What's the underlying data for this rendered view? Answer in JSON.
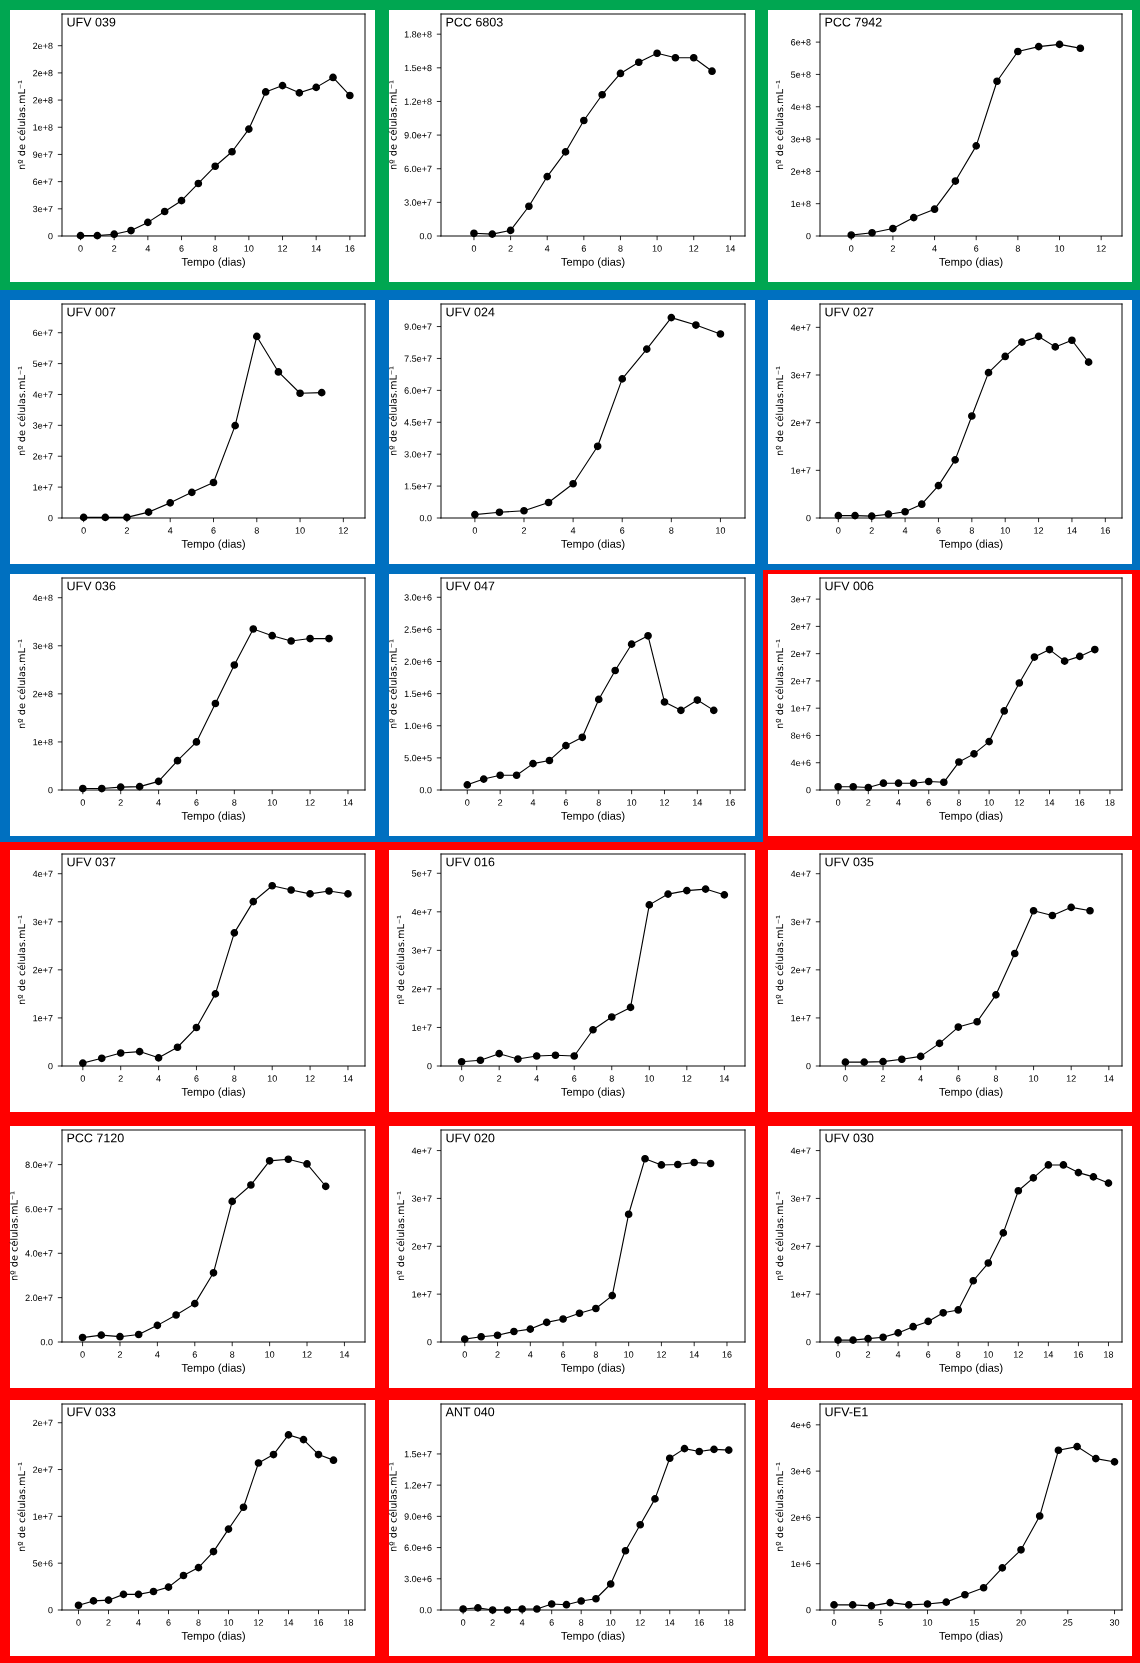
{
  "chart_data": [
    {
      "type": "line",
      "title": "UFV 039",
      "xlabel": "Tempo (dias)",
      "ylabel": "nº de células.mL⁻¹",
      "marker": "circle",
      "x": [
        0,
        1,
        2,
        3,
        4,
        5,
        6,
        7,
        8,
        9,
        10,
        11,
        12,
        13,
        14,
        15,
        16
      ],
      "series": [
        {
          "color": "#000000",
          "values": [
            400000.0,
            400000.0,
            2000000.0,
            6000000.0,
            15000000.0,
            27000000.0,
            39000000.0,
            58000000.0,
            77000000.0,
            93000000.0,
            118000000.0,
            159000000.0,
            166000000.0,
            158000000.0,
            164000000.0,
            175000000.0,
            155000000.0
          ]
        }
      ],
      "xlim": [
        -1.1,
        16.9
      ],
      "xticks": [
        0,
        2,
        4,
        6,
        8,
        10,
        12,
        14,
        16
      ],
      "ylim": [
        0,
        245000000.0
      ],
      "yticks": [
        0,
        {
          "value": 30000000.0,
          "label": "3e+7"
        },
        {
          "value": 60000000.0,
          "label": "6e+7"
        },
        {
          "value": 90000000.0,
          "label": "9e+7"
        },
        {
          "value": 120000000.0,
          "label": "1e+8"
        },
        {
          "value": 150000000.0,
          "label": "2e+8"
        },
        {
          "value": 180000000.0,
          "label": "2e+8"
        },
        {
          "value": 210000000.0,
          "label": "2e+8"
        }
      ]
    },
    {
      "type": "line",
      "title": "PCC 6803",
      "xlabel": "Tempo (dias)",
      "ylabel": "nº de células.mL⁻¹",
      "marker": "circle",
      "x": [
        0,
        1,
        2,
        3,
        4,
        5,
        6,
        7,
        8,
        9,
        10,
        11,
        12,
        13
      ],
      "series": [
        {
          "color": "#000000",
          "values": [
            2400000.0,
            1700000.0,
            5000000.0,
            26500000.0,
            53000000.0,
            75000000.0,
            103000000.0,
            126000000.0,
            145000000.0,
            155000000.0,
            163000000.0,
            159000000.0,
            159000000.0,
            147000000.0
          ]
        }
      ],
      "xlim": [
        -1.8,
        14.8
      ],
      "xticks": [
        0,
        2,
        4,
        6,
        8,
        10,
        12,
        14
      ],
      "ylim": [
        0,
        198000000.0
      ],
      "yticks": [
        {
          "value": 0,
          "label": "0.0"
        },
        {
          "value": 30000000.0,
          "label": "3.0e+7"
        },
        {
          "value": 60000000.0,
          "label": "6.0e+7"
        },
        {
          "value": 90000000.0,
          "label": "9.0e+7"
        },
        {
          "value": 120000000.0,
          "label": "1.2e+8"
        },
        {
          "value": 150000000.0,
          "label": "1.5e+8"
        },
        {
          "value": 180000000.0,
          "label": "1.8e+8"
        }
      ]
    },
    {
      "type": "line",
      "title": "PCC 7942",
      "xlabel": "Tempo (dias)",
      "ylabel": "nº de células.mL⁻¹",
      "marker": "circle",
      "x": [
        0,
        1,
        2,
        3,
        4,
        5,
        6,
        7,
        8,
        9,
        10,
        11
      ],
      "series": [
        {
          "color": "#000000",
          "values": [
            3000000.0,
            10000000.0,
            23000000.0,
            57000000.0,
            83000000.0,
            170000000.0,
            279000000.0,
            479000000.0,
            571000000.0,
            586000000.0,
            593000000.0,
            581000000.0
          ]
        }
      ],
      "xlim": [
        -1.5,
        13.0
      ],
      "xticks": [
        0,
        2,
        4,
        6,
        8,
        10,
        12
      ],
      "ylim": [
        0,
        687000000.0
      ],
      "yticks": [
        0,
        {
          "value": 100000000.0,
          "label": "1e+8"
        },
        {
          "value": 200000000.0,
          "label": "2e+8"
        },
        {
          "value": 300000000.0,
          "label": "3e+8"
        },
        {
          "value": 400000000.0,
          "label": "4e+8"
        },
        {
          "value": 500000000.0,
          "label": "5e+8"
        },
        {
          "value": 600000000.0,
          "label": "6e+8"
        }
      ]
    },
    {
      "type": "line",
      "title": "UFV 007",
      "xlabel": "Tempo (dias)",
      "ylabel": "nº de células.mL⁻¹",
      "marker": "circle",
      "x": [
        0,
        1,
        2,
        3,
        4,
        5,
        6,
        7,
        8,
        9,
        10,
        11
      ],
      "series": [
        {
          "color": "#000000",
          "values": [
            200000.0,
            200000.0,
            200000.0,
            1900000.0,
            4900000.0,
            8300000.0,
            11500000.0,
            29900000.0,
            58800000.0,
            47300000.0,
            40400000.0,
            40600000.0
          ]
        }
      ],
      "xlim": [
        -1.0,
        13.0
      ],
      "xticks": [
        0,
        2,
        4,
        6,
        8,
        10,
        12
      ],
      "ylim": [
        0,
        69300000.0
      ],
      "yticks": [
        0,
        {
          "value": 10000000.0,
          "label": "1e+7"
        },
        {
          "value": 20000000.0,
          "label": "2e+7"
        },
        {
          "value": 30000000.0,
          "label": "3e+7"
        },
        {
          "value": 40000000.0,
          "label": "4e+7"
        },
        {
          "value": 50000000.0,
          "label": "5e+7"
        },
        {
          "value": 60000000.0,
          "label": "6e+7"
        }
      ]
    },
    {
      "type": "line",
      "title": "UFV 024",
      "xlabel": "Tempo (dias)",
      "ylabel": "nº de células.mL⁻¹",
      "marker": "circle",
      "x": [
        0,
        1,
        2,
        3,
        4,
        5,
        6,
        7,
        8,
        9,
        10
      ],
      "series": [
        {
          "color": "#000000",
          "values": [
            1600000.0,
            2700000.0,
            3400000.0,
            7300000.0,
            16100000.0,
            33700000.0,
            65400000.0,
            79400000.0,
            94200000.0,
            90700000.0,
            86500000.0
          ]
        }
      ],
      "xlim": [
        -1.38,
        11.0
      ],
      "xticks": [
        0,
        2,
        4,
        6,
        8,
        10
      ],
      "ylim": [
        0,
        100600000.0
      ],
      "yticks": [
        {
          "value": 0,
          "label": "0.0"
        },
        {
          "value": 15000000.0,
          "label": "1.5e+7"
        },
        {
          "value": 30000000.0,
          "label": "3.0e+7"
        },
        {
          "value": 45000000.0,
          "label": "4.5e+7"
        },
        {
          "value": 60000000.0,
          "label": "6.0e+7"
        },
        {
          "value": 75000000.0,
          "label": "7.5e+7"
        },
        {
          "value": 90000000.0,
          "label": "9.0e+7"
        }
      ]
    },
    {
      "type": "line",
      "title": "UFV 027",
      "xlabel": "Tempo (dias)",
      "ylabel": "nº de células.mL⁻¹",
      "marker": "circle",
      "x": [
        0,
        1,
        2,
        3,
        4,
        5,
        6,
        7,
        8,
        9,
        10,
        11,
        12,
        13,
        14,
        15
      ],
      "series": [
        {
          "color": "#000000",
          "values": [
            500000.0,
            500000.0,
            400000.0,
            800000.0,
            1300000.0,
            2900000.0,
            6800000.0,
            12200000.0,
            21400000.0,
            30500000.0,
            33900000.0,
            36900000.0,
            38100000.0,
            35900000.0,
            37300000.0,
            32700000.0
          ]
        }
      ],
      "xlim": [
        -1.1,
        17.0
      ],
      "xticks": [
        0,
        2,
        4,
        6,
        8,
        10,
        12,
        14,
        16
      ],
      "ylim": [
        0,
        44900000.0
      ],
      "yticks": [
        0,
        {
          "value": 10000000.0,
          "label": "1e+7"
        },
        {
          "value": 20000000.0,
          "label": "2e+7"
        },
        {
          "value": 30000000.0,
          "label": "3e+7"
        },
        {
          "value": 40000000.0,
          "label": "4e+7"
        }
      ]
    },
    {
      "type": "line",
      "title": "UFV 036",
      "xlabel": "Tempo (dias)",
      "ylabel": "nº de células.mL⁻¹",
      "marker": "circle",
      "x": [
        0,
        1,
        2,
        3,
        4,
        5,
        6,
        7,
        8,
        9,
        10,
        11,
        12,
        13
      ],
      "series": [
        {
          "color": "#000000",
          "values": [
            3000000.0,
            3000000.0,
            6000000.0,
            7000000.0,
            18000000.0,
            61000000.0,
            100000000.0,
            180000000.0,
            260000000.0,
            335000000.0,
            321000000.0,
            310000000.0,
            315000000.0,
            315000000.0
          ]
        }
      ],
      "xlim": [
        -1.1,
        14.9
      ],
      "xticks": [
        0,
        2,
        4,
        6,
        8,
        10,
        12,
        14
      ],
      "ylim": [
        0,
        441000000.0
      ],
      "yticks": [
        0,
        {
          "value": 100000000.0,
          "label": "1e+8"
        },
        {
          "value": 200000000.0,
          "label": "2e+8"
        },
        {
          "value": 300000000.0,
          "label": "3e+8"
        },
        {
          "value": 400000000.0,
          "label": "4e+8"
        }
      ]
    },
    {
      "type": "line",
      "title": "UFV 047",
      "xlabel": "Tempo (dias)",
      "ylabel": "nº de células.mL⁻¹",
      "marker": "circle",
      "x": [
        0,
        1,
        2,
        3,
        4,
        5,
        6,
        7,
        8,
        9,
        10,
        11,
        12,
        13,
        14,
        15
      ],
      "series": [
        {
          "color": "#000000",
          "values": [
            80000.0,
            170000.0,
            230000.0,
            230000.0,
            410000.0,
            460000.0,
            690000.0,
            820000.0,
            1410000.0,
            1860000.0,
            2270000.0,
            2400000.0,
            1370000.0,
            1240000.0,
            1400000.0,
            1240000.0
          ]
        }
      ],
      "xlim": [
        -1.6,
        16.9
      ],
      "xticks": [
        0,
        2,
        4,
        6,
        8,
        10,
        12,
        14,
        16
      ],
      "ylim": [
        0,
        3300000.0
      ],
      "yticks": [
        {
          "value": 0,
          "label": "0.0"
        },
        {
          "value": 500000.0,
          "label": "5.0e+5"
        },
        {
          "value": 1000000.0,
          "label": "1.0e+6"
        },
        {
          "value": 1500000.0,
          "label": "1.5e+6"
        },
        {
          "value": 2000000.0,
          "label": "2.0e+6"
        },
        {
          "value": 2500000.0,
          "label": "2.5e+6"
        },
        {
          "value": 3000000.0,
          "label": "3.0e+6"
        }
      ]
    },
    {
      "type": "line",
      "title": "UFV 006",
      "xlabel": "Tempo (dias)",
      "ylabel": "nº de células.mL⁻¹",
      "marker": "circle",
      "x": [
        0,
        1,
        2,
        3,
        4,
        5,
        6,
        7,
        8,
        9,
        10,
        11,
        12,
        13,
        14,
        15,
        16,
        17
      ],
      "series": [
        {
          "color": "#000000",
          "values": [
            470000.0,
            470000.0,
            360000.0,
            1000000.0,
            1000000.0,
            1000000.0,
            1250000.0,
            1130000.0,
            4100000.0,
            5300000.0,
            7100000.0,
            11600000.0,
            15700000.0,
            19500000.0,
            20600000.0,
            18900000.0,
            19600000.0,
            20600000.0
          ]
        }
      ],
      "xlim": [
        -1.2,
        18.8
      ],
      "xticks": [
        0,
        2,
        4,
        6,
        8,
        10,
        12,
        14,
        16,
        18
      ],
      "ylim": [
        0,
        31100000.0
      ],
      "yticks": [
        0,
        {
          "value": 4000000.0,
          "label": "4e+6"
        },
        {
          "value": 8000000.0,
          "label": "8e+6"
        },
        {
          "value": 12000000.0,
          "label": "1e+7"
        },
        {
          "value": 16000000.0,
          "label": "2e+7"
        },
        {
          "value": 20000000.0,
          "label": "2e+7"
        },
        {
          "value": 24000000.0,
          "label": "2e+7"
        },
        {
          "value": 28000000.0,
          "label": "3e+7"
        }
      ]
    },
    {
      "type": "line",
      "title": "UFV 037",
      "xlabel": "Tempo (dias)",
      "ylabel": "nº de células.mL⁻¹",
      "marker": "circle",
      "x": [
        0,
        1,
        2,
        3,
        4,
        5,
        6,
        7,
        8,
        9,
        10,
        11,
        12,
        13,
        14
      ],
      "series": [
        {
          "color": "#000000",
          "values": [
            600000.0,
            1600000.0,
            2700000.0,
            3000000.0,
            1700000.0,
            3900000.0,
            8000000.0,
            15000000.0,
            27700000.0,
            34200000.0,
            37500000.0,
            36600000.0,
            35800000.0,
            36400000.0,
            35800000.0
          ]
        }
      ],
      "xlim": [
        -1.1,
        14.9
      ],
      "xticks": [
        0,
        2,
        4,
        6,
        8,
        10,
        12,
        14
      ],
      "ylim": [
        0,
        44100000.0
      ],
      "yticks": [
        0,
        {
          "value": 10000000.0,
          "label": "1e+7"
        },
        {
          "value": 20000000.0,
          "label": "2e+7"
        },
        {
          "value": 30000000.0,
          "label": "3e+7"
        },
        {
          "value": 40000000.0,
          "label": "4e+7"
        }
      ]
    },
    {
      "type": "line",
      "title": "UFV 016",
      "xlabel": "Tempo (dias)",
      "ylabel": "nº de células.mL⁻¹",
      "marker": "circle",
      "x": [
        0,
        1,
        2,
        3,
        4,
        5,
        6,
        7,
        8,
        9,
        10,
        11,
        12,
        13,
        14
      ],
      "series": [
        {
          "color": "#000000",
          "values": [
            1100000.0,
            1500000.0,
            3200000.0,
            1800000.0,
            2600000.0,
            2800000.0,
            2600000.0,
            9400000.0,
            12700000.0,
            15200000.0,
            41800000.0,
            44600000.0,
            45500000.0,
            45900000.0,
            44400000.0
          ]
        }
      ],
      "xlim": [
        -1.1,
        15.1
      ],
      "xticks": [
        0,
        2,
        4,
        6,
        8,
        10,
        12,
        14
      ],
      "ylim": [
        0,
        55000000.0
      ],
      "yticks": [
        0,
        {
          "value": 10000000.0,
          "label": "1e+7"
        },
        {
          "value": 20000000.0,
          "label": "2e+7"
        },
        {
          "value": 30000000.0,
          "label": "3e+7"
        },
        {
          "value": 40000000.0,
          "label": "4e+7"
        },
        {
          "value": 50000000.0,
          "label": "5e+7"
        }
      ]
    },
    {
      "type": "line",
      "title": "UFV 035",
      "xlabel": "Tempo (dias)",
      "ylabel": "nº de células.mL⁻¹",
      "marker": "circle",
      "x": [
        0,
        1,
        2,
        3,
        4,
        5,
        6,
        7,
        8,
        9,
        10,
        11,
        12,
        13
      ],
      "series": [
        {
          "color": "#000000",
          "values": [
            800000.0,
            800000.0,
            900000.0,
            1400000.0,
            2000000.0,
            4700000.0,
            8100000.0,
            9200000.0,
            14800000.0,
            23400000.0,
            32300000.0,
            31300000.0,
            33000000.0,
            32300000.0
          ]
        }
      ],
      "xlim": [
        -1.35,
        14.7
      ],
      "xticks": [
        0,
        2,
        4,
        6,
        8,
        10,
        12,
        14
      ],
      "ylim": [
        0,
        44100000.0
      ],
      "yticks": [
        0,
        {
          "value": 10000000.0,
          "label": "1e+7"
        },
        {
          "value": 20000000.0,
          "label": "2e+7"
        },
        {
          "value": 30000000.0,
          "label": "3e+7"
        },
        {
          "value": 40000000.0,
          "label": "4e+7"
        }
      ]
    },
    {
      "type": "line",
      "title": "PCC 7120",
      "xlabel": "Tempo (dias)",
      "ylabel": "nº de células.mL⁻¹",
      "marker": "circle",
      "x": [
        0,
        1,
        2,
        3,
        4,
        5,
        6,
        7,
        8,
        9,
        10,
        11,
        12,
        13
      ],
      "series": [
        {
          "color": "#000000",
          "values": [
            2000000.0,
            3100000.0,
            2400000.0,
            3400000.0,
            7500000.0,
            12200000.0,
            17300000.0,
            31200000.0,
            63400000.0,
            70800000.0,
            81700000.0,
            82400000.0,
            80300000.0,
            70200000.0
          ]
        }
      ],
      "xlim": [
        -1.1,
        15.1
      ],
      "xticks": [
        0,
        2,
        4,
        6,
        8,
        10,
        12,
        14
      ],
      "ylim": [
        0,
        95600000.0
      ],
      "yticks": [
        {
          "value": 0,
          "label": "0.0"
        },
        {
          "value": 20000000.0,
          "label": "2.0e+7"
        },
        {
          "value": 40000000.0,
          "label": "4.0e+7"
        },
        {
          "value": 60000000.0,
          "label": "6.0e+7"
        },
        {
          "value": 80000000.0,
          "label": "8.0e+7"
        }
      ]
    },
    {
      "type": "line",
      "title": "UFV 020",
      "xlabel": "Tempo (dias)",
      "ylabel": "nº de células.mL⁻¹",
      "marker": "circle",
      "x": [
        0,
        1,
        2,
        3,
        4,
        5,
        6,
        7,
        8,
        9,
        10,
        11,
        12,
        13,
        14,
        15
      ],
      "series": [
        {
          "color": "#000000",
          "values": [
            600000.0,
            1100000.0,
            1400000.0,
            2200000.0,
            2700000.0,
            4100000.0,
            4800000.0,
            6000000.0,
            7000000.0,
            9700000.0,
            26700000.0,
            38300000.0,
            37000000.0,
            37100000.0,
            37500000.0,
            37300000.0
          ]
        }
      ],
      "xlim": [
        -1.45,
        17.1
      ],
      "xticks": [
        0,
        2,
        4,
        6,
        8,
        10,
        12,
        14,
        16
      ],
      "ylim": [
        0,
        44300000.0
      ],
      "yticks": [
        0,
        {
          "value": 10000000.0,
          "label": "1e+7"
        },
        {
          "value": 20000000.0,
          "label": "2e+7"
        },
        {
          "value": 30000000.0,
          "label": "3e+7"
        },
        {
          "value": 40000000.0,
          "label": "4e+7"
        }
      ]
    },
    {
      "type": "line",
      "title": "UFV 030",
      "xlabel": "Tempo (dias)",
      "ylabel": "nº de células.mL⁻¹",
      "marker": "circle",
      "x": [
        0,
        1,
        2,
        3,
        4,
        5,
        6,
        7,
        8,
        9,
        10,
        11,
        12,
        13,
        14,
        15,
        16,
        17,
        18
      ],
      "series": [
        {
          "color": "#000000",
          "values": [
            400000.0,
            400000.0,
            700000.0,
            1000000.0,
            1900000.0,
            3200000.0,
            4300000.0,
            6100000.0,
            6700000.0,
            12800000.0,
            16500000.0,
            22800000.0,
            31600000.0,
            34300000.0,
            37000000.0,
            37000000.0,
            35400000.0,
            34500000.0,
            33200000.0
          ]
        }
      ],
      "xlim": [
        -1.2,
        18.9
      ],
      "xticks": [
        0,
        2,
        4,
        6,
        8,
        10,
        12,
        14,
        16,
        18
      ],
      "ylim": [
        0,
        44300000.0
      ],
      "yticks": [
        0,
        {
          "value": 10000000.0,
          "label": "1e+7"
        },
        {
          "value": 20000000.0,
          "label": "2e+7"
        },
        {
          "value": 30000000.0,
          "label": "3e+7"
        },
        {
          "value": 40000000.0,
          "label": "4e+7"
        }
      ]
    },
    {
      "type": "line",
      "title": "UFV 033",
      "xlabel": "Tempo (dias)",
      "ylabel": "nº de células.mL⁻¹",
      "marker": "circle",
      "x": [
        0,
        1,
        2,
        3,
        4,
        5,
        6,
        7,
        8,
        9,
        10,
        11,
        12,
        13,
        14,
        15,
        16,
        17
      ],
      "series": [
        {
          "color": "#000000",
          "values": [
            500000.0,
            970000.0,
            1050000.0,
            1670000.0,
            1670000.0,
            1980000.0,
            2440000.0,
            3680000.0,
            4530000.0,
            6240000.0,
            8640000.0,
            10970000.0,
            15700000.0,
            16600000.0,
            18700000.0,
            18200000.0,
            16600000.0,
            16000000.0
          ]
        }
      ],
      "xlim": [
        -1.1,
        19.1
      ],
      "xticks": [
        0,
        2,
        4,
        6,
        8,
        10,
        12,
        14,
        16,
        18
      ],
      "ylim": [
        0,
        22000000.0
      ],
      "yticks": [
        0,
        {
          "value": 5000000.0,
          "label": "5e+6"
        },
        {
          "value": 10000000.0,
          "label": "1e+7"
        },
        {
          "value": 15000000.0,
          "label": "2e+7"
        },
        {
          "value": 20000000.0,
          "label": "2e+7"
        }
      ]
    },
    {
      "type": "line",
      "title": "ANT 040",
      "xlabel": "Tempo (dias)",
      "ylabel": "nº de células.mL⁻¹",
      "marker": "circle",
      "x": [
        0,
        1,
        2,
        3,
        4,
        5,
        6,
        7,
        8,
        9,
        10,
        11,
        12,
        13,
        14,
        15,
        16,
        17,
        18
      ],
      "series": [
        {
          "color": "#000000",
          "values": [
            100000.0,
            200000.0,
            0.0,
            0.0,
            100000.0,
            100000.0,
            580000.0,
            510000.0,
            870000.0,
            1080000.0,
            2500000.0,
            5700000.0,
            8190000.0,
            10680000.0,
            14590000.0,
            15510000.0,
            15230000.0,
            15440000.0,
            15370000.0
          ]
        }
      ],
      "xlim": [
        -1.5,
        19.1
      ],
      "xticks": [
        0,
        2,
        4,
        6,
        8,
        10,
        12,
        14,
        16,
        18
      ],
      "ylim": [
        0,
        19800000.0
      ],
      "yticks": [
        {
          "value": 0,
          "label": "0.0"
        },
        {
          "value": 3000000.0,
          "label": "3.0e+6"
        },
        {
          "value": 6000000.0,
          "label": "6.0e+6"
        },
        {
          "value": 9000000.0,
          "label": "9.0e+6"
        },
        {
          "value": 12000000.0,
          "label": "1.2e+7"
        },
        {
          "value": 15000000.0,
          "label": "1.5e+7"
        }
      ]
    },
    {
      "type": "line",
      "title": "UFV-E1",
      "xlabel": "Tempo (dias)",
      "ylabel": "nº de células.mL⁻¹",
      "marker": "circle",
      "x": [
        0,
        2,
        4,
        6,
        8,
        10,
        12,
        14,
        16,
        18,
        20,
        22,
        24,
        26,
        28,
        30
      ],
      "series": [
        {
          "color": "#000000",
          "values": [
            110000.0,
            110000.0,
            90000.0,
            160000.0,
            110000.0,
            130000.0,
            170000.0,
            330000.0,
            480000.0,
            910000.0,
            1300000.0,
            2030000.0,
            3450000.0,
            3530000.0,
            3270000.0,
            3200000.0
          ]
        }
      ],
      "xlim": [
        -1.5,
        30.8
      ],
      "xticks": [
        0,
        5,
        10,
        15,
        20,
        25,
        30
      ],
      "ylim": [
        0,
        4450000.0
      ],
      "yticks": [
        0,
        {
          "value": 1000000.0,
          "label": "1e+6"
        },
        {
          "value": 2000000.0,
          "label": "2e+6"
        },
        {
          "value": 3000000.0,
          "label": "3e+6"
        },
        {
          "value": 4000000.0,
          "label": "4e+6"
        }
      ]
    }
  ]
}
